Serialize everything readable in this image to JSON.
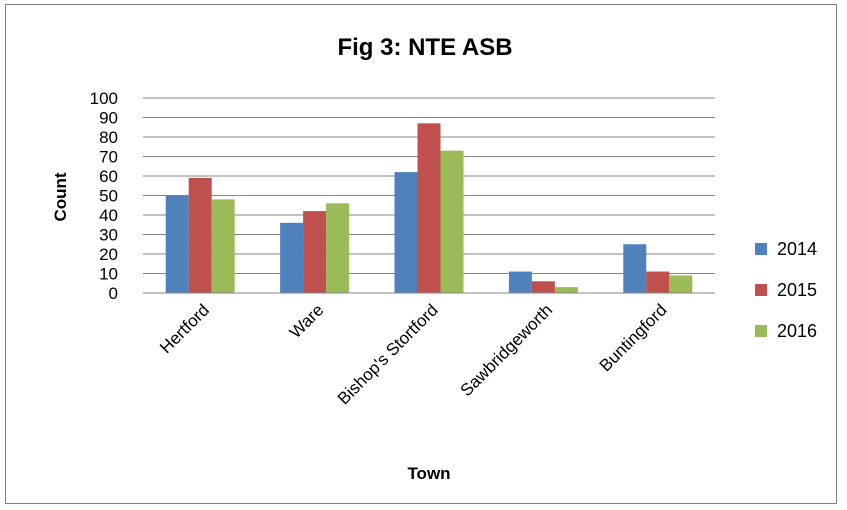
{
  "chart_data": {
    "type": "bar",
    "title": "Fig 3: NTE ASB",
    "xlabel": "Town",
    "ylabel": "Count",
    "categories": [
      "Hertford",
      "Ware",
      "Bishop's Stortford",
      "Sawbridgeworth",
      "Buntingford"
    ],
    "series": [
      {
        "name": "2014",
        "color": "#4f81bd",
        "values": [
          50,
          36,
          62,
          11,
          25
        ]
      },
      {
        "name": "2015",
        "color": "#c0504d",
        "values": [
          59,
          42,
          87,
          6,
          11
        ]
      },
      {
        "name": "2016",
        "color": "#9bbb59",
        "values": [
          48,
          46,
          73,
          3,
          9
        ]
      }
    ],
    "ylim": [
      0,
      100
    ],
    "yticks": [
      0,
      10,
      20,
      30,
      40,
      50,
      60,
      70,
      80,
      90,
      100
    ],
    "grid": true,
    "legend_position": "right"
  }
}
